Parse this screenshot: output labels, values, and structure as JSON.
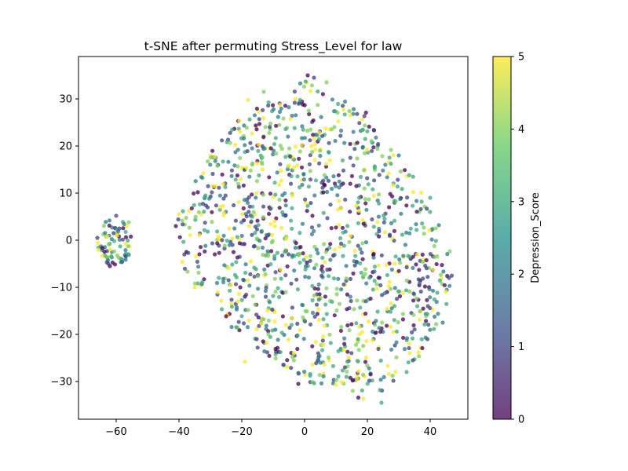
{
  "chart_data": {
    "type": "scatter",
    "title": "t-SNE after permuting Stress_Level for law",
    "xlabel": "",
    "ylabel": "",
    "xlim": [
      -72,
      52
    ],
    "ylim": [
      -38,
      39
    ],
    "xticks": [
      -60,
      -40,
      -20,
      0,
      20,
      40
    ],
    "yticks": [
      -30,
      -20,
      -10,
      0,
      10,
      20,
      30
    ],
    "xtick_labels": [
      "−60",
      "−40",
      "−20",
      "0",
      "20",
      "40"
    ],
    "ytick_labels": [
      "−30",
      "−20",
      "−10",
      "0",
      "10",
      "20",
      "30"
    ],
    "grid": false,
    "marker_alpha": 0.75,
    "colorbar": {
      "label": "Depression_Score",
      "colormap": "viridis",
      "min": 0,
      "max": 5,
      "ticks": [
        0,
        1,
        2,
        3,
        4,
        5
      ],
      "tick_labels": [
        "0",
        "1",
        "2",
        "3",
        "4",
        "5"
      ]
    },
    "colormap_stops": [
      "#440154",
      "#3b528b",
      "#21918c",
      "#5ec962",
      "#fde725"
    ],
    "clusters": [
      {
        "name": "small-left",
        "center": [
          -60.5,
          -0.5
        ],
        "x_range": [
          -66,
          -55
        ],
        "y_range": [
          -5.5,
          5
        ],
        "approx_points": 75
      },
      {
        "name": "main",
        "x_range": [
          -41,
          47
        ],
        "y_range": [
          -35,
          35.5
        ],
        "approx_points": 1250
      }
    ],
    "sample_points": [
      {
        "x": 1,
        "y": 35,
        "score": 0
      },
      {
        "x": 3,
        "y": 34.5,
        "score": 1
      },
      {
        "x": 7,
        "y": 33.5,
        "score": 4
      },
      {
        "x": -13,
        "y": 31.5,
        "score": 4
      },
      {
        "x": -18,
        "y": 29.8,
        "score": 5
      },
      {
        "x": 24.5,
        "y": -34.5,
        "score": 3
      },
      {
        "x": -19,
        "y": -25.8,
        "score": 5
      },
      {
        "x": -2,
        "y": -30.5,
        "score": 0
      },
      {
        "x": 46,
        "y": -8,
        "score": 1
      },
      {
        "x": 44,
        "y": -17.5,
        "score": 2
      },
      {
        "x": -41,
        "y": 3,
        "score": 0
      },
      {
        "x": -40,
        "y": 5.5,
        "score": 5
      },
      {
        "x": -35,
        "y": -10,
        "score": 5
      },
      {
        "x": 30,
        "y": 18,
        "score": 2
      },
      {
        "x": 40,
        "y": 9,
        "score": 3
      },
      {
        "x": -56,
        "y": 3.8,
        "score": 4
      },
      {
        "x": -66,
        "y": 0.5,
        "score": 1
      },
      {
        "x": -62,
        "y": -5.5,
        "score": 0
      },
      {
        "x": -60,
        "y": 5.2,
        "score": 1
      },
      {
        "x": 33.5,
        "y": -24,
        "score": 5
      }
    ]
  }
}
